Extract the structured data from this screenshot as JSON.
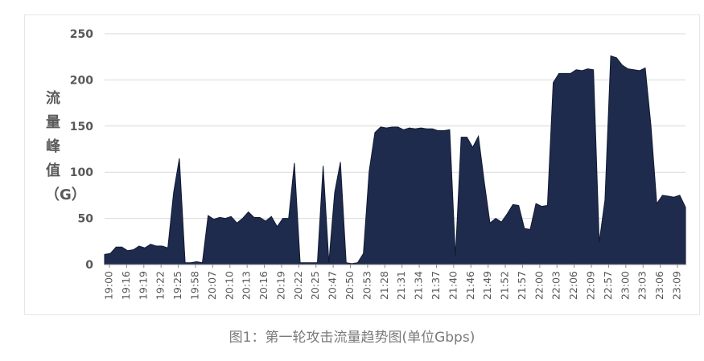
{
  "caption": "图1：第一轮攻击流量趋势图(单位Gbps)",
  "colors": {
    "area": "#1f2b4d",
    "grid": "#d9d9d9",
    "axis": "#8a8a8a",
    "text": "#595959"
  },
  "chart_data": {
    "type": "area",
    "ylabel": "流量峰值（G）",
    "ylim": [
      0,
      250
    ],
    "yticks": [
      0,
      50,
      100,
      150,
      200,
      250
    ],
    "grid": true,
    "xticks": [
      "19:00",
      "19:16",
      "19:19",
      "19:22",
      "19:25",
      "19:58",
      "20:07",
      "20:10",
      "20:13",
      "20:16",
      "20:19",
      "20:22",
      "20:25",
      "20:47",
      "20:50",
      "20:53",
      "21:28",
      "21:31",
      "21:34",
      "21:37",
      "21:40",
      "21:46",
      "21:49",
      "21:52",
      "21:57",
      "22:00",
      "22:03",
      "22:06",
      "22:09",
      "22:57",
      "23:00",
      "23:03",
      "23:06",
      "23:09"
    ],
    "series": [
      {
        "values": [
          11,
          12,
          19,
          19,
          15,
          16,
          20,
          18,
          22,
          20,
          20,
          18,
          78,
          115,
          2,
          2,
          3,
          2,
          53,
          49,
          51,
          50,
          52,
          45,
          50,
          57,
          51,
          51,
          47,
          52,
          41,
          50,
          50,
          110,
          2,
          2,
          2,
          2,
          107,
          2,
          78,
          111,
          2,
          1,
          2,
          12,
          101,
          143,
          149,
          148,
          149,
          149,
          146,
          148,
          147,
          148,
          147,
          147,
          145,
          145,
          146,
          9,
          138,
          138,
          127,
          139,
          90,
          45,
          50,
          46,
          55,
          65,
          64,
          39,
          38,
          66,
          63,
          64,
          197,
          207,
          207,
          207,
          211,
          210,
          212,
          211,
          24,
          70,
          226,
          224,
          216,
          212,
          211,
          210,
          213,
          150,
          66,
          75,
          74,
          73,
          75,
          62
        ]
      }
    ]
  }
}
